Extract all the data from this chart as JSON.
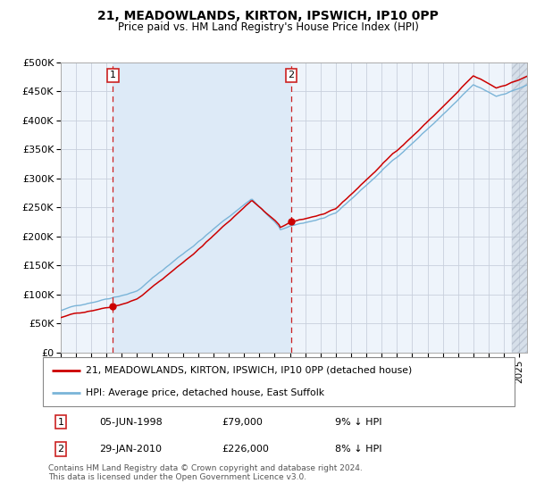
{
  "title1": "21, MEADOWLANDS, KIRTON, IPSWICH, IP10 0PP",
  "title2": "Price paid vs. HM Land Registry's House Price Index (HPI)",
  "ylabel_ticks": [
    "£0",
    "£50K",
    "£100K",
    "£150K",
    "£200K",
    "£250K",
    "£300K",
    "£350K",
    "£400K",
    "£450K",
    "£500K"
  ],
  "ytick_values": [
    0,
    50000,
    100000,
    150000,
    200000,
    250000,
    300000,
    350000,
    400000,
    450000,
    500000
  ],
  "xlim_start": 1995.0,
  "xlim_end": 2025.5,
  "ylim_min": 0,
  "ylim_max": 500000,
  "sale1_date_x": 1998.42,
  "sale1_price": 79000,
  "sale2_date_x": 2010.08,
  "sale2_price": 226000,
  "shaded_region_start": 1998.42,
  "shaded_region_end": 2010.08,
  "hatch_region_start": 2024.5,
  "hatch_region_end": 2026.0,
  "legend_line1": "21, MEADOWLANDS, KIRTON, IPSWICH, IP10 0PP (detached house)",
  "legend_line2": "HPI: Average price, detached house, East Suffolk",
  "table_row1": [
    "1",
    "05-JUN-1998",
    "£79,000",
    "9% ↓ HPI"
  ],
  "table_row2": [
    "2",
    "29-JAN-2010",
    "£226,000",
    "8% ↓ HPI"
  ],
  "footnote": "Contains HM Land Registry data © Crown copyright and database right 2024.\nThis data is licensed under the Open Government Licence v3.0.",
  "hpi_color": "#7ab4d8",
  "price_color": "#cc0000",
  "shade_color": "#ddeaf7",
  "plot_bg_color": "#eef4fb",
  "outer_bg_color": "#ffffff",
  "grid_color": "#c8d0dc",
  "hatch_color": "#c0ccd8"
}
